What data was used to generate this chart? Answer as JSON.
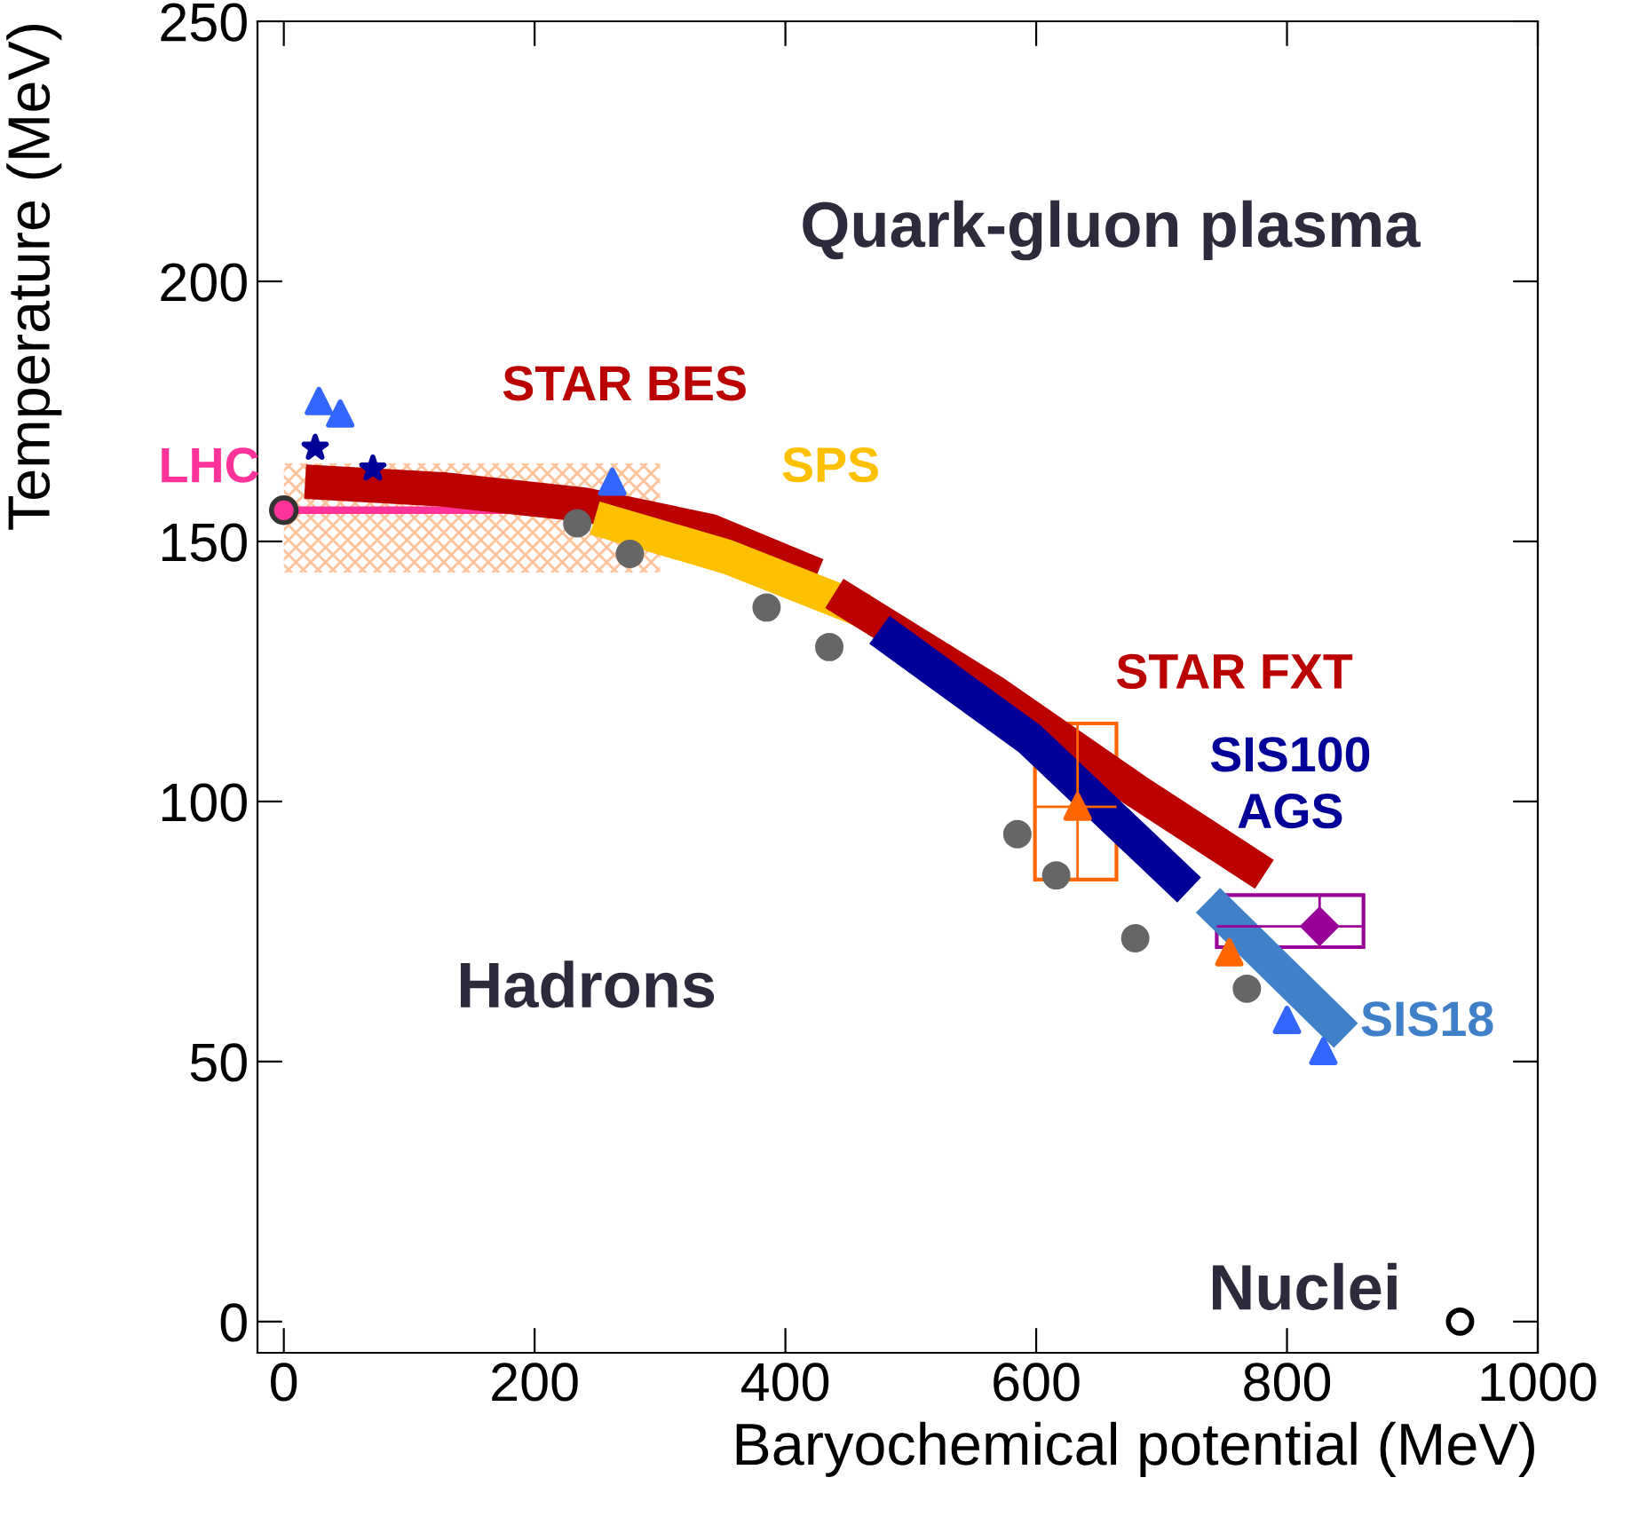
{
  "chart_data": {
    "type": "line",
    "xlabel": "Baryochemical potential (MeV)",
    "ylabel": "Temperature (MeV)",
    "xlim": [
      -21,
      1000
    ],
    "ylim": [
      -6,
      250
    ],
    "xticks": [
      0,
      200,
      400,
      600,
      800,
      1000
    ],
    "yticks": [
      0,
      50,
      100,
      150,
      200,
      250
    ],
    "grid": false,
    "legend": false,
    "series": [
      {
        "name": "LHC",
        "color": "#ff3399",
        "x": [
          0,
          300
        ],
        "values": [
          156,
          156
        ],
        "lower": [
          144,
          144
        ],
        "upper": [
          165,
          165
        ]
      },
      {
        "name": "STAR BES",
        "color": "#bb0000",
        "x": [
          17,
          127,
          241,
          340,
          425
        ],
        "values": [
          161.5,
          160,
          157,
          152,
          143.5
        ]
      },
      {
        "name": "SPS",
        "color": "#ffc000",
        "x": [
          248,
          354,
          463
        ],
        "values": [
          154.5,
          147,
          136.6
        ]
      },
      {
        "name": "STAR FXT",
        "color": "#bb0000",
        "x": [
          439,
          566,
          680,
          782
        ],
        "values": [
          140,
          121,
          102,
          86
        ]
      },
      {
        "name": "SIS100\nAGS",
        "color": "#000099",
        "x": [
          475,
          595,
          722
        ],
        "values": [
          133,
          112,
          83
        ]
      },
      {
        "name": "SIS18",
        "color": "#4080c8",
        "x": [
          737,
          847
        ],
        "values": [
          81,
          55
        ]
      },
      {
        "type": "scatter",
        "marker": "circle",
        "color": "#666666",
        "x": [
          234,
          276,
          385,
          435,
          585,
          616,
          679,
          768
        ],
        "values": [
          153.5,
          147.6,
          137.3,
          129.7,
          93.7,
          85.8,
          73.7,
          64
        ]
      },
      {
        "type": "scatter",
        "marker": "triangle",
        "color": "#3366ff",
        "x": [
          28,
          45,
          262,
          800,
          829
        ],
        "values": [
          177,
          174.6,
          161.5,
          58,
          52
        ]
      },
      {
        "type": "scatter",
        "marker": "star",
        "color": "#000099",
        "x": [
          25,
          71
        ],
        "values": [
          168,
          164
        ]
      },
      {
        "type": "scatter",
        "marker": "triangle",
        "color": "#ff6600",
        "x": [
          633,
          754
        ],
        "values": [
          99,
          71
        ],
        "xerrors": [
          [
            599,
            664
          ],
          null
        ],
        "errors": [
          [
            85,
            115
          ],
          null
        ]
      },
      {
        "type": "scatter",
        "marker": "diamond",
        "color": "#990099",
        "x": [
          826
        ],
        "values": [
          76
        ],
        "xerrors": [
          [
            744,
            861
          ]
        ],
        "errors": [
          [
            72,
            82
          ]
        ]
      },
      {
        "type": "scatter",
        "marker": "circle",
        "color": "#000000",
        "x": [
          938
        ],
        "values": [
          0
        ]
      }
    ],
    "annotations": [
      "Quark-gluon plasma",
      "Hadrons",
      "Nuclei"
    ]
  }
}
